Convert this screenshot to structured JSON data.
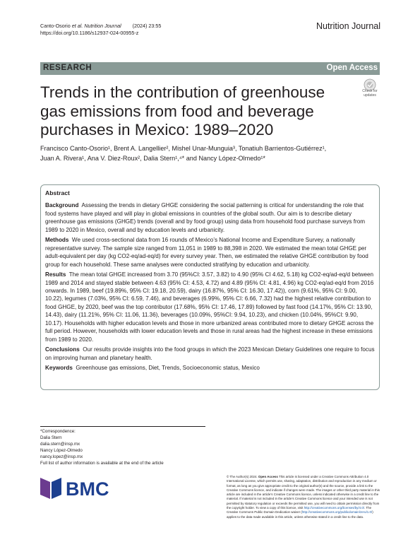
{
  "header": {
    "citation_authors": "Canto-Osorio ",
    "citation_etal": "et al. Nutrition Journal",
    "citation_year": "        (2024) 23:55",
    "doi": "https://doi.org/10.1186/s12937-024-00955-z",
    "journal": "Nutrition Journal"
  },
  "banner": {
    "label": "RESEARCH",
    "open_access": "Open Access"
  },
  "title": "Trends in the contribution of greenhouse gas emissions from food and beverage purchases in Mexico: 1989–2020",
  "check_badge": {
    "line1": "Check for",
    "line2": "updates"
  },
  "authors_line1": "Francisco Canto-Osorio¹, Brent A. Langellier², Mishel Unar-Munguia³, Tonatiuh Barrientos-Gutiérrez¹,",
  "authors_line2": "Juan A. Rivera¹, Ana V. Diez-Roux², Dalia Stern¹,⁴* and Nancy López-Olmedo¹*",
  "abstract": {
    "heading": "Abstract",
    "background_label": "Background",
    "background": "Assessing the trends in dietary GHGE considering the social patterning is critical for understanding the role that food systems have played and will play in global emissions in countries of the global south. Our aim is to describe dietary greenhouse gas emissions (GHGE) trends (overall and by food group) using data from household food purchase surveys from 1989 to 2020 in Mexico, overall and by education levels and urbanicity.",
    "methods_label": "Methods",
    "methods": "We used cross-sectional data from 16 rounds of Mexico’s National Income and Expenditure Survey, a nationally representative survey. The sample size ranged from 11,051 in 1989 to 88,398 in 2020. We estimated the mean total GHGE per adult-equivalent per day (kg CO2-eq/ad-eq/d) for every survey year. Then, we estimated the relative GHGE contribution by food group for each household. These same analyses were conducted stratifying by education and urbanicity.",
    "results_label": "Results",
    "results": "The mean total GHGE increased from 3.70 (95%CI: 3.57, 3.82) to 4.90 (95% CI 4.62, 5.18) kg CO2-eq/ad-eq/d between 1989 and 2014 and stayed stable between 4.63 (95% CI: 4.53, 4.72) and 4.89 (95% CI: 4.81, 4.96) kg CO2-eq/ad-eq/d from 2016 onwards. In 1989, beef (19.89%, 95% CI: 19.18, 20.59), dairy (16.87%, 95% CI: 16.30, 17.42)), corn (9.61%, 95% CI: 9.00, 10.22), legumes (7.03%, 95% CI: 6.59, 7.46), and beverages (6.99%, 95% CI: 6.66, 7.32) had the highest relative contribution to food GHGE, by 2020, beef was the top contributor (17.68%, 95% CI: 17.46, 17.89) followed by fast food (14.17%, 95% CI: 13.90, 14.43), dairy (11.21%, 95% CI: 11.06, 11.36), beverages (10.09%, 95%CI: 9.94, 10.23), and chicken (10.04%, 95%CI: 9.90, 10.17). Households with higher education levels and those in more urbanized areas contributed more to dietary GHGE across the full period. However, households with lower education levels and those in rural areas had the highest increase in these emissions from 1989 to 2020.",
    "conclusions_label": "Conclusions",
    "conclusions": "Our results provide insights into the food groups in which the 2023 Mexican Dietary Guidelines one require to focus on improving human and planetary health.",
    "keywords_label": "Keywords",
    "keywords": "Greenhouse gas emissions, Diet, Trends, Socioeconomic status, Mexico"
  },
  "correspondence": {
    "label": "*Correspondence:",
    "name1": "Dalia Stern",
    "email1": "dalia.stern@insp.mx",
    "name2": "Nancy López-Olmedo",
    "email2": "nancy.lopez@insp.mx",
    "note": "Full list of author information is available at the end of the article"
  },
  "logo_text": "BMC",
  "license": {
    "prefix": "© The Author(s) 2024. ",
    "open_access": "Open Access",
    "text1": " This article is licensed under a Creative Commons Attribution 4.0 International License, which permits use, sharing, adaptation, distribution and reproduction in any medium or format, as long as you give appropriate credit to the original author(s) and the source, provide a link to the Creative Commons licence, and indicate if changes were made. The images or other third party material in this article are included in the article’s Creative Commons licence, unless indicated otherwise in a credit line to the material. If material is not included in the article’s Creative Commons licence and your intended use is not permitted by statutory regulation or exceeds the permitted use, you will need to obtain permission directly from the copyright holder. To view a copy of this licence, visit ",
    "link1": "http://creativecommons.org/licenses/by/4.0/",
    "text2": ". The Creative Commons Public Domain Dedication waiver (",
    "link2": "http://creativecommons.org/publicdomain/zero/1.0/",
    "text3": ") applies to the data made available in this article, unless otherwise stated in a credit line to the data."
  },
  "colors": {
    "banner": "#8a9b97",
    "logo_blue": "#1d3f8f",
    "logo_purple": "#6b3b8f",
    "link": "#1a5aa6"
  }
}
